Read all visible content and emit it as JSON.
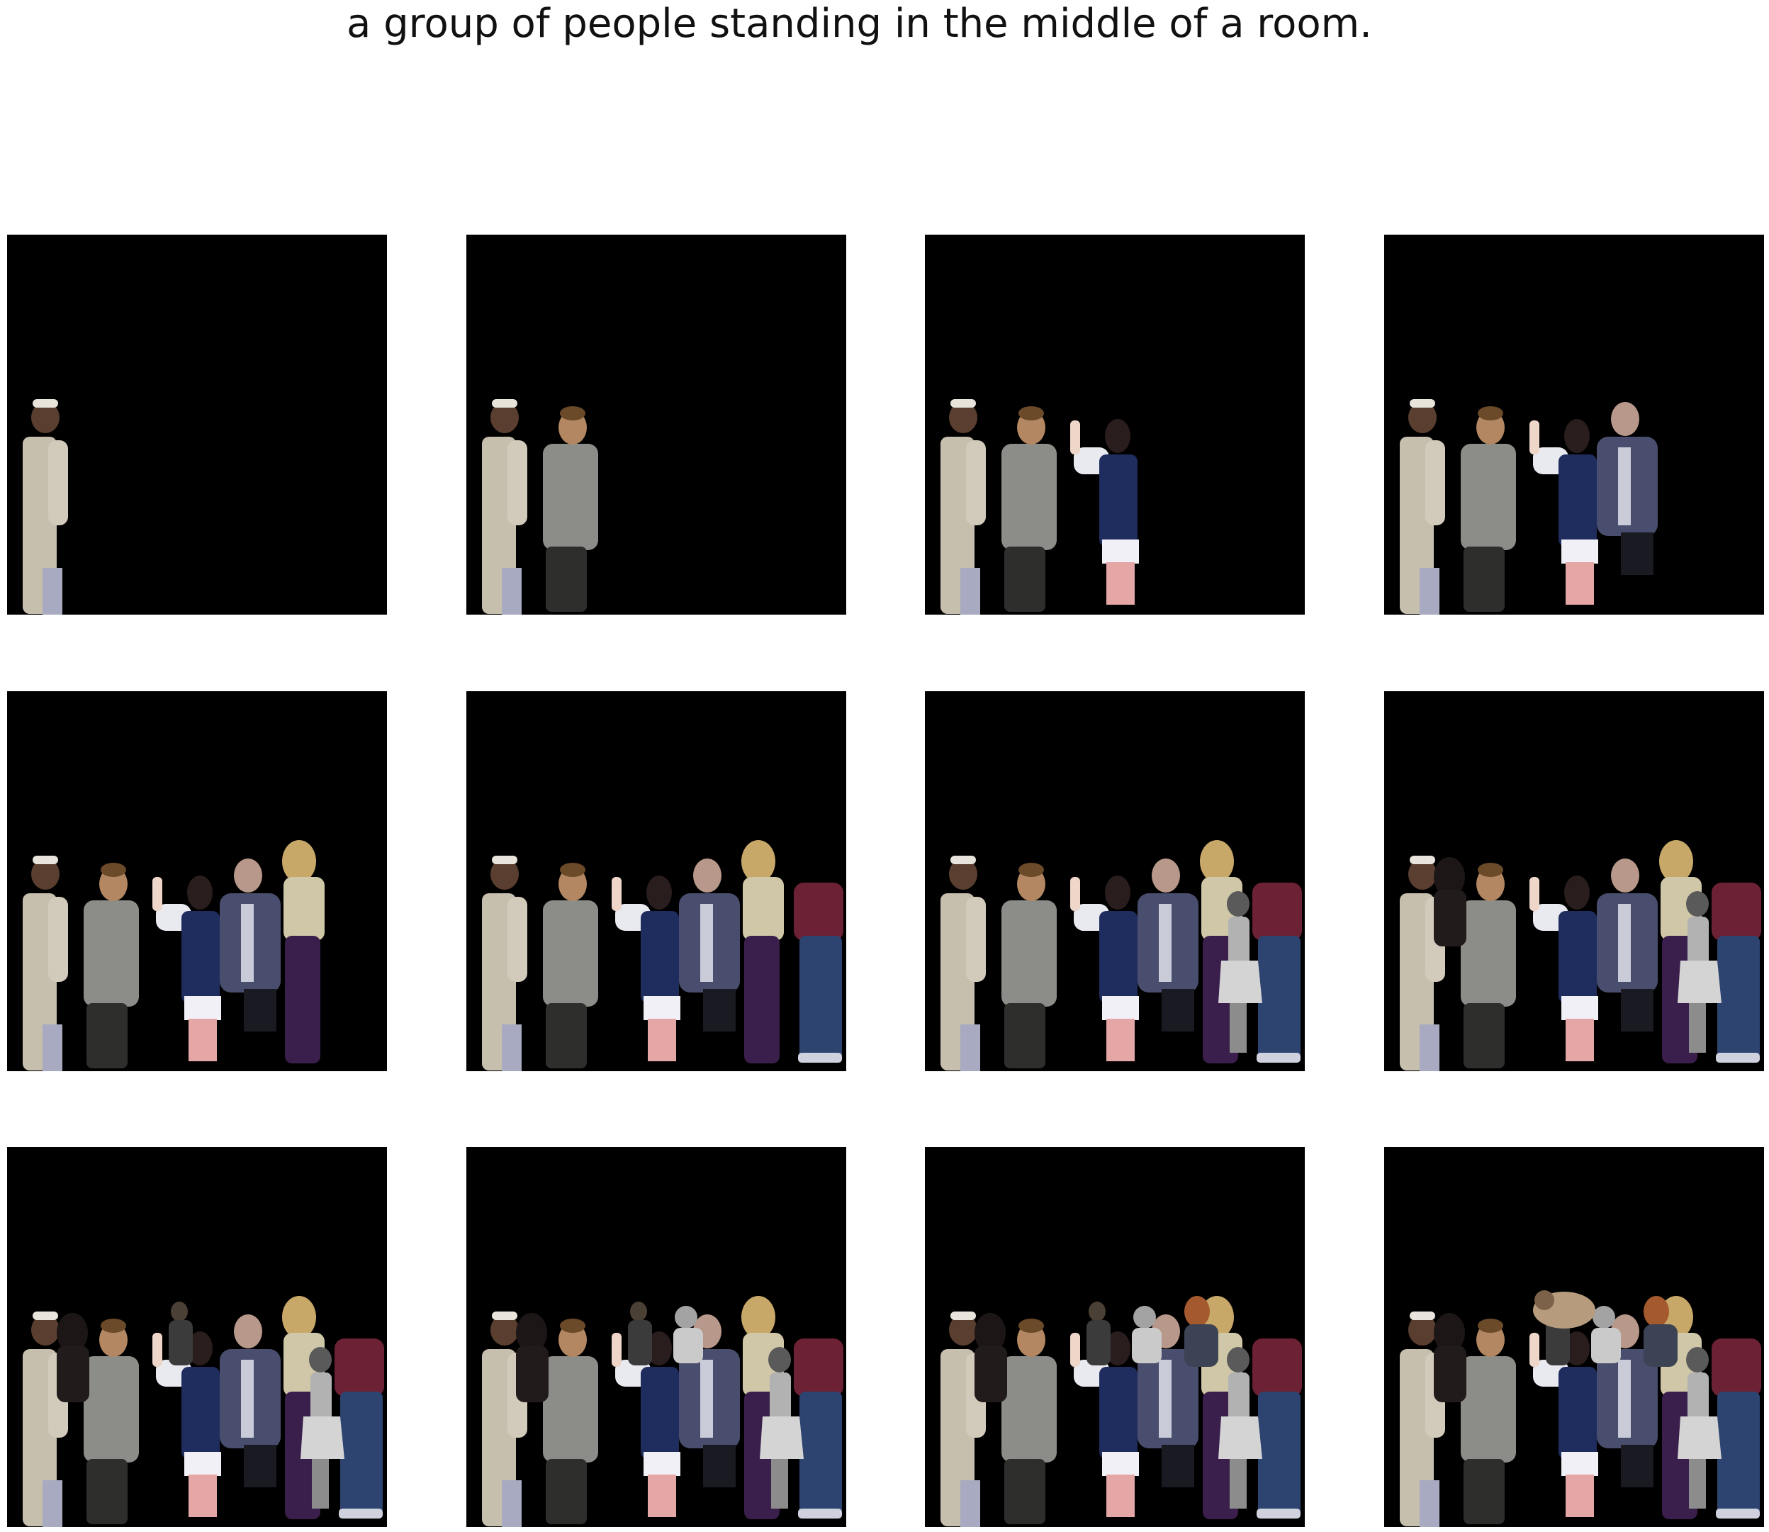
{
  "figure": {
    "caption": "a group of people standing in the middle of a room.",
    "canvas_color": "#000000",
    "background_color": "#ffffff"
  },
  "panels": [
    {
      "step": 1,
      "figures": [
        "man-white-robe"
      ]
    },
    {
      "step": 2,
      "figures": [
        "man-white-robe",
        "man-gray-shirt"
      ]
    },
    {
      "step": 3,
      "figures": [
        "man-white-robe",
        "man-gray-shirt",
        "woman-waving"
      ]
    },
    {
      "step": 4,
      "figures": [
        "man-white-robe",
        "man-gray-shirt",
        "woman-waving",
        "man-suit-seated"
      ]
    },
    {
      "step": 5,
      "figures": [
        "man-white-robe",
        "man-gray-shirt",
        "woman-waving",
        "man-suit-seated",
        "woman-blonde-purple"
      ]
    },
    {
      "step": 6,
      "figures": [
        "man-white-robe",
        "man-gray-shirt",
        "woman-waving",
        "man-suit-seated",
        "woman-blonde-purple",
        "person-red-jacket-jeans"
      ]
    },
    {
      "step": 7,
      "figures": [
        "man-white-robe",
        "man-gray-shirt",
        "woman-waving",
        "man-suit-seated",
        "woman-blonde-purple",
        "person-red-jacket-jeans",
        "girl-grayscale-dress"
      ]
    },
    {
      "step": 8,
      "figures": [
        "man-white-robe",
        "man-gray-shirt",
        "woman-waving",
        "man-suit-seated",
        "woman-blonde-purple",
        "person-red-jacket-jeans",
        "girl-grayscale-dress",
        "woman-dark-hair"
      ]
    },
    {
      "step": 9,
      "figures": [
        "man-white-robe",
        "man-gray-shirt",
        "woman-waving",
        "man-suit-seated",
        "woman-blonde-purple",
        "person-red-jacket-jeans",
        "girl-grayscale-dress",
        "woman-dark-hair",
        "man-dark-small"
      ]
    },
    {
      "step": 10,
      "figures": [
        "man-white-robe",
        "man-gray-shirt",
        "woman-waving",
        "man-suit-seated",
        "woman-blonde-purple",
        "person-red-jacket-jeans",
        "girl-grayscale-dress",
        "woman-dark-hair",
        "man-dark-small",
        "child-grayscale"
      ]
    },
    {
      "step": 11,
      "figures": [
        "man-white-robe",
        "man-gray-shirt",
        "woman-waving",
        "man-suit-seated",
        "woman-blonde-purple",
        "person-red-jacket-jeans",
        "girl-grayscale-dress",
        "woman-dark-hair",
        "man-dark-small",
        "child-grayscale",
        "man-orange-head"
      ]
    },
    {
      "step": 12,
      "figures": [
        "man-white-robe",
        "man-gray-shirt",
        "woman-waving",
        "man-suit-seated",
        "woman-blonde-purple",
        "person-red-jacket-jeans",
        "girl-grayscale-dress",
        "woman-dark-hair",
        "man-dark-small",
        "child-grayscale",
        "man-orange-head",
        "person-tan-reclining"
      ]
    }
  ]
}
